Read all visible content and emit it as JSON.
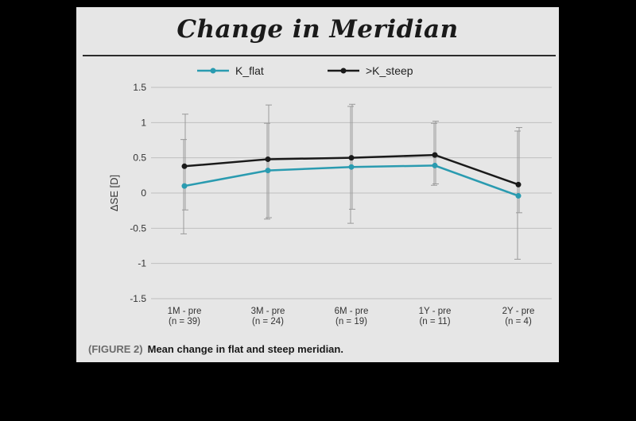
{
  "figure": {
    "caption_number": "(FIGURE 2)",
    "caption_text": "Mean change in flat and steep meridian."
  },
  "chart_data": {
    "type": "line",
    "title": "Change in Meridian",
    "ylabel": "ΔSE [D]",
    "xlabel": "",
    "ylim": [
      -1.5,
      1.5
    ],
    "yticks": [
      -1.5,
      -1,
      -0.5,
      0,
      0.5,
      1,
      1.5
    ],
    "ytick_labels": [
      "-1.5",
      "-1",
      "-0.5",
      "0",
      "0.5",
      "1",
      "1.5"
    ],
    "categories": [
      {
        "line1": "1M - pre",
        "line2": "(n = 39)"
      },
      {
        "line1": "3M - pre",
        "line2": "(n = 24)"
      },
      {
        "line1": "6M - pre",
        "line2": "(n =  19)"
      },
      {
        "line1": "1Y - pre",
        "line2": "(n = 11)"
      },
      {
        "line1": "2Y - pre",
        "line2": "(n = 4)"
      }
    ],
    "grid": true,
    "legend_position": "top",
    "series": [
      {
        "name": "K_flat",
        "color": "#2a9bb0",
        "values": [
          0.1,
          0.32,
          0.37,
          0.39,
          -0.04
        ],
        "error_low": [
          -0.58,
          -0.37,
          -0.43,
          0.11,
          -0.94
        ],
        "error_high": [
          0.76,
          0.99,
          1.23,
          0.99,
          0.88
        ]
      },
      {
        "name": ">K_steep",
        "color": "#1a1a1a",
        "values": [
          0.38,
          0.48,
          0.5,
          0.54,
          0.12
        ],
        "error_low": [
          -0.24,
          -0.35,
          -0.23,
          0.13,
          -0.28
        ],
        "error_high": [
          1.12,
          1.25,
          1.26,
          1.02,
          0.93
        ]
      }
    ]
  }
}
